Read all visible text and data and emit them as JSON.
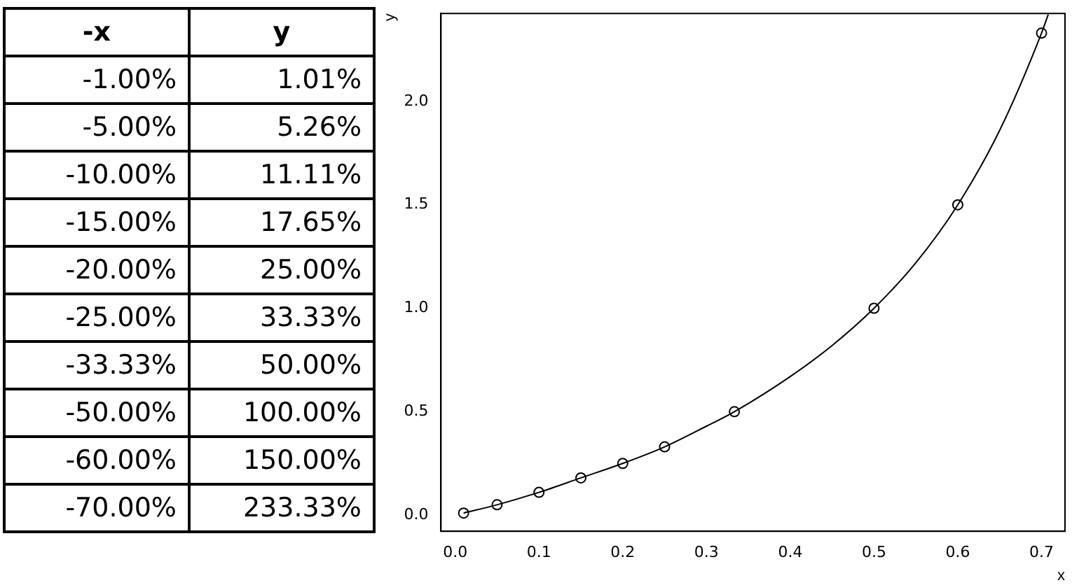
{
  "chart_data": [
    {
      "type": "other",
      "annotations": [
        "-x",
        "y",
        "-1.00%",
        "1.01%",
        "-5.00%",
        "5.26%",
        "-10.00%",
        "11.11%",
        "-15.00%",
        "17.65%",
        "-20.00%",
        "25.00%",
        "-25.00%",
        "33.33%",
        "-33.33%",
        "50.00%",
        "-50.00%",
        "100.00%",
        "-60.00%",
        "150.00%",
        "-70.00%",
        "233.33%"
      ]
    },
    {
      "type": "scatter",
      "xlabel": "x",
      "ylabel": "y",
      "xlim": [
        -0.017,
        0.728
      ],
      "ylim": [
        -0.078,
        2.425
      ],
      "xticks": [
        {
          "value": 0,
          "label": "0.0"
        },
        0.1,
        0.2,
        0.3,
        0.4,
        0.5,
        0.6,
        0.7
      ],
      "yticks": [
        {
          "value": 0,
          "label": "0.0"
        },
        0.5,
        {
          "value": 1,
          "label": "1.0"
        },
        1.5,
        {
          "value": 2,
          "label": "2.0"
        }
      ],
      "grid": false,
      "legend": false,
      "series": [
        {
          "type": "line",
          "color": "#000000",
          "marker": "none",
          "x": [
            0.01,
            0.05,
            0.1,
            0.15,
            0.2,
            0.25,
            0.3,
            0.3333,
            0.4,
            0.45,
            0.5,
            0.55,
            0.6,
            0.65,
            0.7,
            0.708
          ],
          "values": [
            0.01,
            0.05,
            0.11,
            0.18,
            0.25,
            0.33,
            0.43,
            0.5,
            0.67,
            0.82,
            1,
            1.22,
            1.5,
            1.86,
            2.33,
            2.42
          ]
        },
        {
          "type": "scatter",
          "color": "#000000",
          "marker": "circle",
          "x": [
            0.01,
            0.05,
            0.1,
            0.15,
            0.2,
            0.25,
            0.3333,
            0.5,
            0.6,
            0.7
          ],
          "values": [
            0.01,
            0.05,
            0.11,
            0.18,
            0.25,
            0.33,
            0.5,
            1,
            1.5,
            2.33
          ]
        }
      ]
    }
  ]
}
